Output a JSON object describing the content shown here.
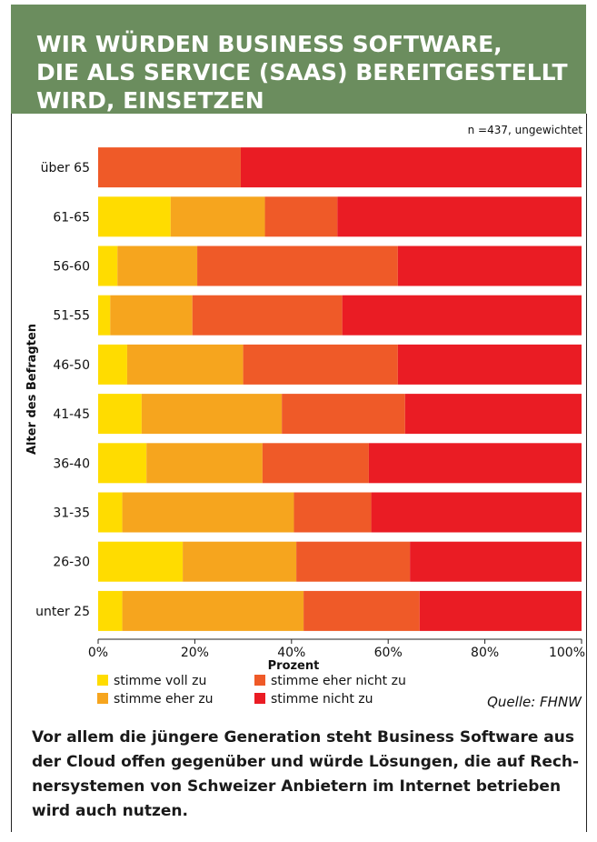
{
  "header": {
    "title_lines": [
      "WIR WÜRDEN BUSINESS SOFTWARE,",
      "DIE ALS SERVICE (SAAS) BEREITGESTELLT",
      "WIRD, EINSETZEN"
    ]
  },
  "chart_data": {
    "type": "bar",
    "orientation": "horizontal",
    "stacked": true,
    "note": "n =437, ungewichtet",
    "xlabel": "Prozent",
    "ylabel": "Alter des Befragten",
    "xlim": [
      0,
      100
    ],
    "x_ticks": [
      "0%",
      "20%",
      "40%",
      "60%",
      "80%",
      "100%"
    ],
    "categories": [
      "über 65",
      "61-65",
      "56-60",
      "51-55",
      "46-50",
      "41-45",
      "36-40",
      "31-35",
      "26-30",
      "unter 25"
    ],
    "series": [
      {
        "name": "stimme voll zu",
        "color": "#ffdc00",
        "values": [
          0,
          15,
          4,
          2.5,
          6,
          9,
          10,
          5,
          17.5,
          5
        ]
      },
      {
        "name": "stimme eher zu",
        "color": "#f6a51e",
        "values": [
          0,
          19.5,
          16.5,
          17,
          24,
          29,
          24,
          35.5,
          23.5,
          37.5
        ]
      },
      {
        "name": "stimme eher nicht zu",
        "color": "#ef5a28",
        "values": [
          29.5,
          15,
          41.5,
          31,
          32,
          25.5,
          22,
          16,
          23.5,
          24
        ]
      },
      {
        "name": "stimme nicht zu",
        "color": "#ea1c24",
        "values": [
          70.5,
          50.5,
          38,
          49.5,
          38,
          36.5,
          44,
          43.5,
          35.5,
          33.5
        ]
      }
    ],
    "legend_order": [
      "stimme voll zu",
      "stimme eher nicht zu",
      "stimme eher zu",
      "stimme nicht zu"
    ],
    "legend_position": "bottom",
    "source": "Quelle: FHNW"
  },
  "caption_lines": [
    "Vor allem die jüngere Generation steht Business Software aus",
    "der Cloud offen gegenüber und würde Lösungen, die auf Rech-",
    "nersystemen von Schweizer Anbietern im Internet betrieben",
    "wird auch nutzen."
  ]
}
